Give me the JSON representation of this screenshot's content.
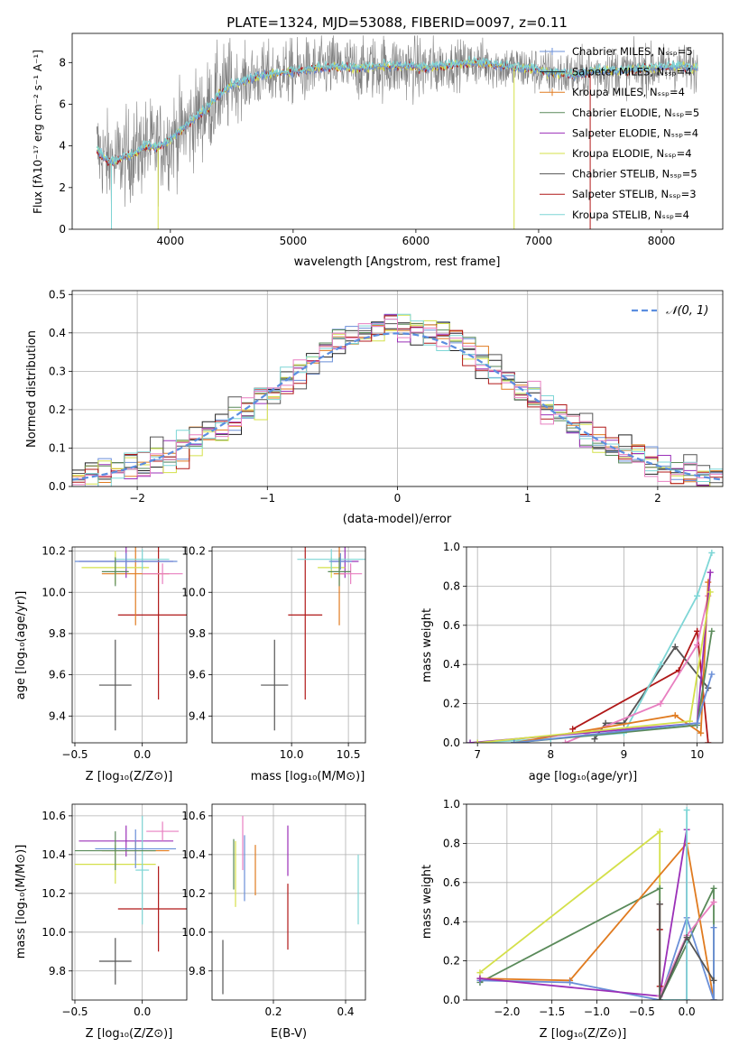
{
  "title": "PLATE=1324, MJD=53088, FIBERID=0097, z=0.11",
  "colors": {
    "chab_miles": "#6a8fd8",
    "salp_miles": "#222222",
    "krou_miles": "#e07b20",
    "chab_elodie": "#5a8a5a",
    "salp_elodie": "#9b30b8",
    "krou_elodie": "#d4e04a",
    "chab_stelib": "#555555",
    "salp_stelib": "#b01818",
    "krou_stelib": "#7ed6d6",
    "pink": "#e87fc0",
    "normal": "#5b8ee0"
  },
  "chart_data": [
    {
      "id": "spectrum",
      "type": "line",
      "title": "PLATE=1324, MJD=53088, FIBERID=0097, z=0.11",
      "xlabel": "wavelength [Angstrom, rest frame]",
      "ylabel": "Flux [fλ10⁻¹⁷ erg cm⁻² s⁻¹ A⁻¹]",
      "xlim": [
        3200,
        8500
      ],
      "ylim": [
        0,
        9.4
      ],
      "xticks": [
        4000,
        5000,
        6000,
        7000,
        8000
      ],
      "yticks": [
        0,
        2,
        4,
        6,
        8
      ],
      "grid": false,
      "legend_position": "top-right",
      "legend": [
        {
          "name": "Chabrier MILES, Nₛₛₚ=5",
          "color": "#6a8fd8"
        },
        {
          "name": "Salpeter MILES, Nₛₛₚ=4",
          "color": "#222222"
        },
        {
          "name": "Kroupa MILES, Nₛₛₚ=4",
          "color": "#e07b20"
        },
        {
          "name": "Chabrier ELODIE, Nₛₛₚ=5",
          "color": "#5a8a5a"
        },
        {
          "name": "Salpeter ELODIE, Nₛₛₚ=4",
          "color": "#9b30b8"
        },
        {
          "name": "Kroupa ELODIE, Nₛₛₚ=4",
          "color": "#d4e04a"
        },
        {
          "name": "Chabrier STELIB, Nₛₛₚ=5",
          "color": "#555555"
        },
        {
          "name": "Salpeter STELIB, Nₛₛₚ=3",
          "color": "#b01818"
        },
        {
          "name": "Kroupa STELIB, Nₛₛₚ=4",
          "color": "#7ed6d6"
        }
      ],
      "model_curve": {
        "x": [
          3400,
          3500,
          3600,
          3700,
          3800,
          3900,
          4000,
          4100,
          4200,
          4300,
          4400,
          4500,
          4700,
          4900,
          5100,
          5300,
          5500,
          5700,
          5900,
          6100,
          6300,
          6500,
          6700,
          6900,
          7100,
          7300,
          7500,
          7700,
          7900,
          8100,
          8300
        ],
        "y": [
          3.8,
          3.2,
          3.4,
          3.6,
          4.0,
          3.9,
          4.3,
          4.8,
          5.3,
          5.8,
          6.5,
          6.9,
          7.3,
          7.5,
          7.6,
          7.8,
          7.7,
          7.8,
          7.8,
          7.7,
          7.9,
          8.0,
          7.8,
          7.7,
          7.5,
          7.4,
          7.6,
          7.6,
          7.7,
          7.8,
          7.7
        ]
      }
    },
    {
      "id": "residuals",
      "type": "line",
      "xlabel": "(data-model)/error",
      "ylabel": "Normed distribution",
      "xlim": [
        -2.5,
        2.5
      ],
      "ylim": [
        0,
        0.51
      ],
      "xticks": [
        -2,
        -1,
        0,
        1,
        2
      ],
      "yticks": [
        0.0,
        0.1,
        0.2,
        0.3,
        0.4,
        0.5
      ],
      "grid": true,
      "legend_position": "top-right",
      "legend": [
        {
          "name": "𝒩(0, 1)",
          "color": "#5b8ee0"
        }
      ],
      "bin_width": 0.1
    },
    {
      "id": "age_vs_Z",
      "type": "scatter",
      "xlabel": "Z [log₁₀(Z/Z⊙)]",
      "ylabel": "age  [log₁₀(age/yr)]",
      "xlim": [
        -0.52,
        0.33
      ],
      "ylim": [
        9.27,
        10.22
      ],
      "xticks": [
        -0.5,
        0.0
      ],
      "yticks": [
        9.4,
        9.6,
        9.8,
        10.0,
        10.2
      ],
      "grid": true,
      "points": [
        {
          "x": -0.2,
          "y": 9.55,
          "xerr": 0.12,
          "yerr": 0.22,
          "color": "#555555"
        },
        {
          "x": 0.12,
          "y": 9.89,
          "xerr": 0.3,
          "yerr": 0.41,
          "color": "#b01818"
        },
        {
          "x": -0.05,
          "y": 10.09,
          "xerr": 0.25,
          "yerr": 0.25,
          "color": "#e07b20"
        },
        {
          "x": -0.12,
          "y": 10.15,
          "xerr": 0.35,
          "yerr": 0.08,
          "color": "#9b30b8"
        },
        {
          "x": -0.2,
          "y": 10.12,
          "xerr": 0.25,
          "yerr": 0.08,
          "color": "#d4e04a"
        },
        {
          "x": 0.0,
          "y": 10.16,
          "xerr": 0.2,
          "yerr": 0.05,
          "color": "#7ed6d6"
        },
        {
          "x": -0.12,
          "y": 10.15,
          "xerr": 0.38,
          "yerr": 0.04,
          "color": "#6a8fd8"
        },
        {
          "x": 0.15,
          "y": 10.09,
          "xerr": 0.15,
          "yerr": 0.05,
          "color": "#e87fc0"
        },
        {
          "x": -0.2,
          "y": 10.1,
          "xerr": 0.1,
          "yerr": 0.07,
          "color": "#5a8a5a"
        }
      ]
    },
    {
      "id": "age_vs_mass",
      "type": "scatter",
      "xlabel": "mass [log₁₀(M/M⊙)]",
      "xlim": [
        9.3,
        10.65
      ],
      "ylim": [
        9.27,
        10.22
      ],
      "xticks": [
        10.0,
        10.5
      ],
      "yticks": [
        9.4,
        9.6,
        9.8,
        10.0,
        10.2
      ],
      "grid": true,
      "points": [
        {
          "x": 9.85,
          "y": 9.55,
          "xerr": 0.12,
          "yerr": 0.22,
          "color": "#555555"
        },
        {
          "x": 10.12,
          "y": 9.89,
          "xerr": 0.15,
          "yerr": 0.41,
          "color": "#b01818"
        },
        {
          "x": 10.42,
          "y": 10.09,
          "xerr": 0.05,
          "yerr": 0.25,
          "color": "#e07b20"
        },
        {
          "x": 10.47,
          "y": 10.15,
          "xerr": 0.12,
          "yerr": 0.08,
          "color": "#9b30b8"
        },
        {
          "x": 10.35,
          "y": 10.12,
          "xerr": 0.12,
          "yerr": 0.05,
          "color": "#d4e04a"
        },
        {
          "x": 10.35,
          "y": 10.16,
          "xerr": 0.3,
          "yerr": 0.05,
          "color": "#7ed6d6"
        },
        {
          "x": 10.43,
          "y": 10.15,
          "xerr": 0.1,
          "yerr": 0.04,
          "color": "#6a8fd8"
        },
        {
          "x": 10.52,
          "y": 10.09,
          "xerr": 0.1,
          "yerr": 0.05,
          "color": "#e87fc0"
        },
        {
          "x": 10.42,
          "y": 10.1,
          "xerr": 0.1,
          "yerr": 0.07,
          "color": "#5a8a5a"
        }
      ]
    },
    {
      "id": "mass_weight_vs_age",
      "type": "line",
      "xlabel": "age  [log₁₀(age/yr)]",
      "ylabel": "mass weight",
      "xlim": [
        6.85,
        10.35
      ],
      "ylim": [
        0,
        1.0
      ],
      "xticks": [
        7,
        8,
        9,
        10
      ],
      "yticks": [
        0.0,
        0.2,
        0.4,
        0.6,
        0.8,
        1.0
      ],
      "grid": true,
      "series": [
        {
          "color": "#b01818",
          "x": [
            8.3,
            9.75,
            10.0,
            10.15
          ],
          "y": [
            0.07,
            0.37,
            0.57,
            0.0
          ]
        },
        {
          "color": "#555555",
          "x": [
            8.6,
            8.75,
            9.0,
            9.7,
            10.15
          ],
          "y": [
            0.02,
            0.1,
            0.1,
            0.49,
            0.28
          ]
        },
        {
          "color": "#7ed6d6",
          "x": [
            6.9,
            8.0,
            9.0,
            9.5,
            10.0,
            10.2
          ],
          "y": [
            0.0,
            0.02,
            0.05,
            0.4,
            0.75,
            0.97
          ]
        },
        {
          "color": "#e87fc0",
          "x": [
            8.2,
            9.5,
            10.0,
            10.15
          ],
          "y": [
            0.0,
            0.2,
            0.5,
            0.75
          ]
        },
        {
          "color": "#e07b20",
          "x": [
            7.5,
            9.7,
            10.05,
            10.15
          ],
          "y": [
            0.0,
            0.14,
            0.05,
            0.82
          ]
        },
        {
          "color": "#9b30b8",
          "x": [
            6.9,
            10.0,
            10.18
          ],
          "y": [
            0.0,
            0.1,
            0.87
          ]
        },
        {
          "color": "#d4e04a",
          "x": [
            7.0,
            9.9,
            10.18
          ],
          "y": [
            0.0,
            0.11,
            0.77
          ]
        },
        {
          "color": "#5a8a5a",
          "x": [
            7.5,
            10.0,
            10.2
          ],
          "y": [
            0.0,
            0.09,
            0.57
          ]
        },
        {
          "color": "#6a8fd8",
          "x": [
            7.5,
            10.0,
            10.2
          ],
          "y": [
            0.0,
            0.1,
            0.35
          ]
        }
      ]
    },
    {
      "id": "mass_vs_Z",
      "type": "scatter",
      "xlabel": "Z [log₁₀(Z/Z⊙)]",
      "ylabel": "mass [log₁₀(M/M⊙)]",
      "xlim": [
        -0.52,
        0.33
      ],
      "ylim": [
        9.65,
        10.66
      ],
      "xticks": [
        -0.5,
        0.0
      ],
      "yticks": [
        9.8,
        10.0,
        10.2,
        10.4,
        10.6
      ],
      "grid": true,
      "points": [
        {
          "x": -0.2,
          "y": 9.85,
          "xerr": 0.12,
          "yerr": 0.12,
          "color": "#555555"
        },
        {
          "x": 0.12,
          "y": 10.12,
          "xerr": 0.3,
          "yerr": 0.22,
          "color": "#b01818"
        },
        {
          "x": -0.05,
          "y": 10.42,
          "xerr": 0.25,
          "yerr": 0.05,
          "color": "#e07b20"
        },
        {
          "x": -0.12,
          "y": 10.47,
          "xerr": 0.35,
          "yerr": 0.08,
          "color": "#9b30b8"
        },
        {
          "x": -0.2,
          "y": 10.35,
          "xerr": 0.3,
          "yerr": 0.1,
          "color": "#d4e04a"
        },
        {
          "x": 0.0,
          "y": 10.32,
          "xerr": 0.05,
          "yerr": 0.28,
          "color": "#7ed6d6"
        },
        {
          "x": -0.05,
          "y": 10.43,
          "xerr": 0.3,
          "yerr": 0.1,
          "color": "#6a8fd8"
        },
        {
          "x": 0.15,
          "y": 10.52,
          "xerr": 0.12,
          "yerr": 0.05,
          "color": "#e87fc0"
        },
        {
          "x": -0.2,
          "y": 10.42,
          "xerr": 0.3,
          "yerr": 0.1,
          "color": "#5a8a5a"
        }
      ]
    },
    {
      "id": "mass_vs_EBV",
      "type": "scatter",
      "xlabel": "E(B-V)",
      "xlim": [
        0.03,
        0.455
      ],
      "ylim": [
        9.65,
        10.66
      ],
      "xticks": [
        0.2,
        0.4
      ],
      "yticks": [
        9.8,
        10.0,
        10.2,
        10.4,
        10.6
      ],
      "grid": true,
      "points": [
        {
          "x": 0.06,
          "y": 9.82,
          "yerr": 0.14,
          "color": "#555555"
        },
        {
          "x": 0.24,
          "y": 10.08,
          "yerr": 0.17,
          "color": "#b01818"
        },
        {
          "x": 0.15,
          "y": 10.32,
          "yerr": 0.13,
          "color": "#e07b20"
        },
        {
          "x": 0.24,
          "y": 10.42,
          "yerr": 0.13,
          "color": "#9b30b8"
        },
        {
          "x": 0.095,
          "y": 10.3,
          "yerr": 0.17,
          "color": "#d4e04a"
        },
        {
          "x": 0.435,
          "y": 10.22,
          "yerr": 0.18,
          "color": "#7ed6d6"
        },
        {
          "x": 0.12,
          "y": 10.33,
          "yerr": 0.17,
          "color": "#6a8fd8"
        },
        {
          "x": 0.115,
          "y": 10.46,
          "yerr": 0.14,
          "color": "#e87fc0"
        },
        {
          "x": 0.09,
          "y": 10.35,
          "yerr": 0.13,
          "color": "#5a8a5a"
        }
      ]
    },
    {
      "id": "mass_weight_vs_Z",
      "type": "line",
      "xlabel": "Z [log₁₀(Z/Z⊙)]",
      "ylabel": "mass weight",
      "xlim": [
        -2.45,
        0.4
      ],
      "ylim": [
        0,
        1.0
      ],
      "xticks": [
        -2.0,
        -1.5,
        -1.0,
        -0.5,
        0.0
      ],
      "yticks": [
        0.0,
        0.2,
        0.4,
        0.6,
        0.8,
        1.0
      ],
      "grid": true,
      "series": [
        {
          "color": "#d4e04a",
          "x": [
            -2.3,
            -0.3,
            -0.3,
            -0.3
          ],
          "y": [
            0.14,
            0.86,
            0.0,
            0.0
          ]
        },
        {
          "color": "#5a8a5a",
          "x": [
            -2.3,
            -0.3,
            -0.3,
            0.3,
            0.3
          ],
          "y": [
            0.09,
            0.57,
            0.0,
            0.57,
            0.0
          ]
        },
        {
          "color": "#e07b20",
          "x": [
            -2.3,
            -1.3,
            0.0,
            0.3
          ],
          "y": [
            0.11,
            0.1,
            0.8,
            0.0
          ]
        },
        {
          "color": "#6a8fd8",
          "x": [
            -2.3,
            -1.3,
            -0.3,
            0.0,
            0.3,
            0.3
          ],
          "y": [
            0.1,
            0.09,
            0.0,
            0.42,
            0.0,
            0.37
          ]
        },
        {
          "color": "#9b30b8",
          "x": [
            -2.3,
            -0.3,
            0.0,
            0.0
          ],
          "y": [
            0.11,
            0.02,
            0.87,
            0.0
          ]
        },
        {
          "color": "#e87fc0",
          "x": [
            -0.3,
            0.0,
            0.3
          ],
          "y": [
            0.02,
            0.33,
            0.5
          ]
        },
        {
          "color": "#7ed6d6",
          "x": [
            -0.3,
            0.0,
            0.0,
            0.0
          ],
          "y": [
            0.0,
            0.0,
            0.97,
            0.3
          ]
        },
        {
          "color": "#b01818",
          "x": [
            -0.3,
            -0.3,
            -0.3
          ],
          "y": [
            0.49,
            0.07,
            0.36
          ]
        },
        {
          "color": "#555555",
          "x": [
            -0.3,
            -0.3,
            0.0,
            0.3
          ],
          "y": [
            0.49,
            0.0,
            0.32,
            0.1
          ]
        }
      ]
    }
  ]
}
